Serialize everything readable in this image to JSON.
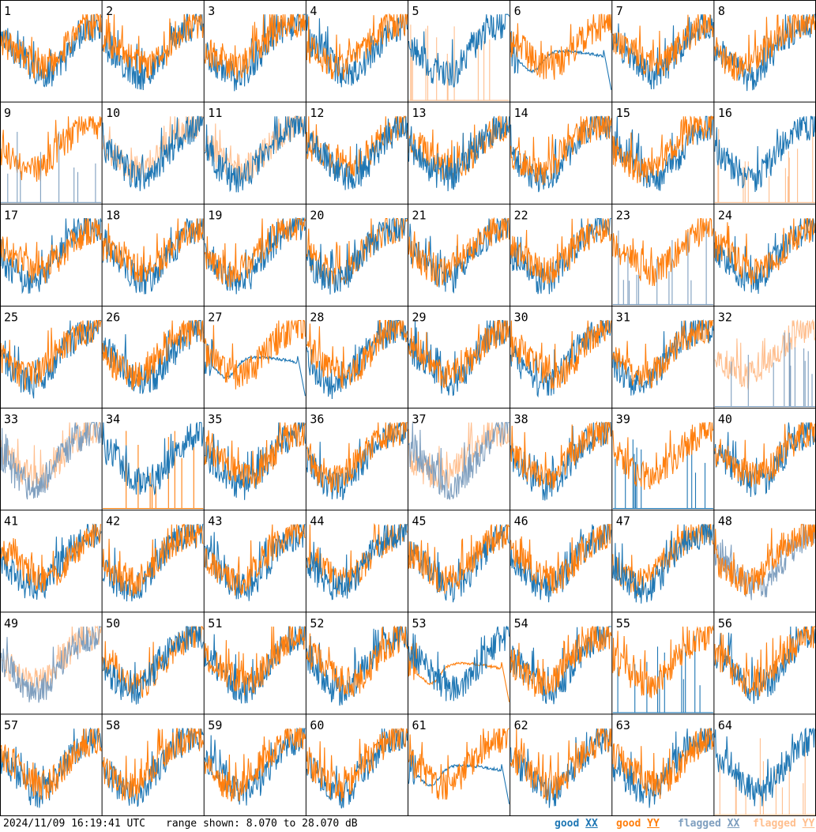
{
  "chart_data": {
    "type": "line",
    "layout": "8x8 small multiples",
    "panel_labels": [
      "1",
      "2",
      "3",
      "4",
      "5",
      "6",
      "7",
      "8",
      "9",
      "10",
      "11",
      "12",
      "13",
      "14",
      "15",
      "16",
      "17",
      "18",
      "19",
      "20",
      "21",
      "22",
      "23",
      "24",
      "25",
      "26",
      "27",
      "28",
      "29",
      "30",
      "31",
      "32",
      "33",
      "34",
      "35",
      "36",
      "37",
      "38",
      "39",
      "40",
      "41",
      "42",
      "43",
      "44",
      "45",
      "46",
      "47",
      "48",
      "49",
      "50",
      "51",
      "52",
      "53",
      "54",
      "55",
      "56",
      "57",
      "58",
      "59",
      "60",
      "61",
      "62",
      "63",
      "64"
    ],
    "range_db": [
      8.07,
      28.07
    ],
    "grid": false,
    "legend_position": "bottom-right",
    "series_styles": {
      "good_xx": "#1f77b4",
      "good_yy": "#ff7f0e",
      "flagged_xx": "#7f9fbf",
      "flagged_yy": "#ffbf8f"
    },
    "panels": {
      "1": {
        "xx": "good",
        "yy": "good",
        "yy_front": true
      },
      "2": {
        "xx": "good",
        "yy": "good",
        "yy_front": true
      },
      "3": {
        "xx": "good",
        "yy": "good",
        "yy_front": true
      },
      "4": {
        "xx": "good",
        "yy": "good",
        "yy_front": true
      },
      "5": {
        "xx": "good",
        "yy": "flagged",
        "yy_mode": "spikes"
      },
      "6": {
        "xx": "good",
        "yy": "good",
        "xx_mode": "droop",
        "yy_front": true
      },
      "7": {
        "xx": "good",
        "yy": "good",
        "yy_front": true
      },
      "8": {
        "xx": "good",
        "yy": "good",
        "yy_front": true
      },
      "9": {
        "xx": "flagged",
        "yy": "good",
        "xx_mode": "spikes"
      },
      "10": {
        "xx": "good",
        "yy": "flagged"
      },
      "11": {
        "xx": "good",
        "yy": "flagged"
      },
      "12": {
        "xx": "good",
        "yy": "good"
      },
      "13": {
        "xx": "good",
        "yy": "good"
      },
      "14": {
        "xx": "good",
        "yy": "good",
        "yy_front": true
      },
      "15": {
        "xx": "good",
        "yy": "good",
        "yy_front": true
      },
      "16": {
        "xx": "good",
        "yy": "flagged",
        "yy_mode": "spikes"
      },
      "17": {
        "xx": "good",
        "yy": "good",
        "yy_front": true
      },
      "18": {
        "xx": "good",
        "yy": "good",
        "yy_front": true
      },
      "19": {
        "xx": "good",
        "yy": "good",
        "yy_front": true
      },
      "20": {
        "xx": "good",
        "yy": "good"
      },
      "21": {
        "xx": "good",
        "yy": "good",
        "yy_front": true
      },
      "22": {
        "xx": "good",
        "yy": "good",
        "yy_front": true
      },
      "23": {
        "xx": "flagged",
        "yy": "good",
        "xx_mode": "spikes"
      },
      "24": {
        "xx": "good",
        "yy": "good",
        "yy_front": true
      },
      "25": {
        "xx": "good",
        "yy": "good",
        "yy_front": true
      },
      "26": {
        "xx": "good",
        "yy": "good",
        "yy_front": true
      },
      "27": {
        "xx": "good",
        "yy": "good",
        "xx_mode": "droop",
        "yy_front": true
      },
      "28": {
        "xx": "good",
        "yy": "good",
        "yy_front": true
      },
      "29": {
        "xx": "good",
        "yy": "good",
        "yy_front": true
      },
      "30": {
        "xx": "good",
        "yy": "good",
        "yy_front": true
      },
      "31": {
        "xx": "good",
        "yy": "good",
        "yy_front": true
      },
      "32": {
        "xx": "flagged",
        "yy": "flagged",
        "xx_mode": "spikes"
      },
      "33": {
        "xx": "flagged",
        "yy": "flagged"
      },
      "34": {
        "xx": "good",
        "yy": "good",
        "yy_mode": "spikes"
      },
      "35": {
        "xx": "good",
        "yy": "good",
        "yy_front": true
      },
      "36": {
        "xx": "good",
        "yy": "good",
        "yy_front": true
      },
      "37": {
        "xx": "flagged",
        "yy": "flagged"
      },
      "38": {
        "xx": "good",
        "yy": "good",
        "yy_front": true
      },
      "39": {
        "xx": "good",
        "yy": "good",
        "xx_mode": "spikes",
        "yy_front": true
      },
      "40": {
        "xx": "good",
        "yy": "good",
        "yy_front": true
      },
      "41": {
        "xx": "good",
        "yy": "good",
        "yy_front": true
      },
      "42": {
        "xx": "good",
        "yy": "good",
        "yy_front": true
      },
      "43": {
        "xx": "good",
        "yy": "good",
        "yy_front": true
      },
      "44": {
        "xx": "good",
        "yy": "good"
      },
      "45": {
        "xx": "good",
        "yy": "good",
        "yy_front": true
      },
      "46": {
        "xx": "good",
        "yy": "good",
        "yy_front": true
      },
      "47": {
        "xx": "good",
        "yy": "good"
      },
      "48": {
        "xx": "flagged",
        "yy": "good",
        "yy_front": true
      },
      "49": {
        "xx": "flagged",
        "yy": "flagged"
      },
      "50": {
        "xx": "good",
        "yy": "good"
      },
      "51": {
        "xx": "good",
        "yy": "good",
        "yy_front": true
      },
      "52": {
        "xx": "good",
        "yy": "good",
        "yy_front": true
      },
      "53": {
        "xx": "good",
        "yy": "good",
        "yy_mode": "droop"
      },
      "54": {
        "xx": "good",
        "yy": "good",
        "yy_front": true
      },
      "55": {
        "xx": "good",
        "yy": "good",
        "xx_mode": "spikes",
        "yy_front": true
      },
      "56": {
        "xx": "good",
        "yy": "good",
        "yy_front": true
      },
      "57": {
        "xx": "good",
        "yy": "good",
        "yy_front": true
      },
      "58": {
        "xx": "good",
        "yy": "good",
        "yy_front": true
      },
      "59": {
        "xx": "good",
        "yy": "good",
        "yy_front": true
      },
      "60": {
        "xx": "good",
        "yy": "good",
        "yy_front": true
      },
      "61": {
        "xx": "good",
        "yy": "good",
        "xx_mode": "droop",
        "yy_front": true
      },
      "62": {
        "xx": "good",
        "yy": "good",
        "yy_front": true
      },
      "63": {
        "xx": "good",
        "yy": "good",
        "yy_front": true
      },
      "64": {
        "xx": "good",
        "yy": "flagged",
        "yy_mode": "spikes"
      }
    }
  },
  "footer": {
    "timestamp": "2024/11/09 16:19:41 UTC",
    "range_text": "range shown: 8.070 to 28.070 dB",
    "legend": {
      "good_label": "good",
      "flagged_label": "flagged",
      "xx_label": "XX",
      "yy_label": "YY"
    }
  }
}
